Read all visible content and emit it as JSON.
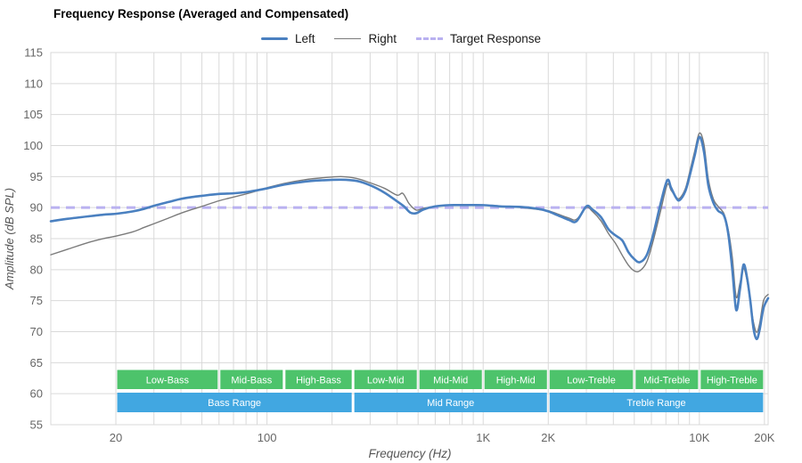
{
  "title": "Frequency Response (Averaged and Compensated)",
  "legend": [
    {
      "label": "Left",
      "style": "thick",
      "color": "#4a80c0"
    },
    {
      "label": "Right",
      "style": "thin",
      "color": "#7b7b7b"
    },
    {
      "label": "Target Response",
      "style": "dashed",
      "color": "#b9b1f0"
    }
  ],
  "colors": {
    "grid": "#d9d9d9",
    "tick_text": "#666666",
    "axis_label_text": "#555555",
    "band_green": "#4dc36b",
    "band_blue": "#41a7e1",
    "band_text": "#ffffff",
    "left_line": "#4a80c0",
    "right_line": "#7b7b7b",
    "target_line": "#b9b1f0"
  },
  "chart_data": {
    "type": "line",
    "title": "Frequency Response (Averaged and Compensated)",
    "xlabel": "Frequency (Hz)",
    "ylabel": "Amplitude (dB SPL)",
    "x_scale": "log",
    "xlim": [
      10,
      20800
    ],
    "ylim": [
      55,
      115
    ],
    "grid": true,
    "legend_position": "top-center",
    "y_ticks": [
      55,
      60,
      65,
      70,
      75,
      80,
      85,
      90,
      95,
      100,
      105,
      110,
      115
    ],
    "x_ticks": [
      {
        "f": 20,
        "label": "20"
      },
      {
        "f": 100,
        "label": "100"
      },
      {
        "f": 1000,
        "label": "1K"
      },
      {
        "f": 2000,
        "label": "2K"
      },
      {
        "f": 10000,
        "label": "10K"
      },
      {
        "f": 20000,
        "label": "20K"
      }
    ],
    "x_gridlines": [
      20,
      30,
      40,
      50,
      60,
      70,
      80,
      90,
      100,
      200,
      300,
      400,
      500,
      600,
      700,
      800,
      900,
      1000,
      2000,
      3000,
      4000,
      5000,
      6000,
      7000,
      8000,
      9000,
      10000,
      20000
    ],
    "target_db": 90,
    "series": [
      {
        "name": "Left",
        "points": [
          [
            10,
            87.8
          ],
          [
            12,
            88.2
          ],
          [
            15,
            88.6
          ],
          [
            18,
            88.9
          ],
          [
            20,
            89.0
          ],
          [
            24,
            89.4
          ],
          [
            27,
            89.8
          ],
          [
            30,
            90.3
          ],
          [
            35,
            90.9
          ],
          [
            40,
            91.4
          ],
          [
            45,
            91.7
          ],
          [
            50,
            91.9
          ],
          [
            60,
            92.2
          ],
          [
            70,
            92.3
          ],
          [
            80,
            92.5
          ],
          [
            90,
            92.8
          ],
          [
            100,
            93.1
          ],
          [
            120,
            93.7
          ],
          [
            150,
            94.2
          ],
          [
            180,
            94.4
          ],
          [
            220,
            94.5
          ],
          [
            260,
            94.3
          ],
          [
            300,
            93.6
          ],
          [
            350,
            92.4
          ],
          [
            400,
            91.0
          ],
          [
            430,
            90.2
          ],
          [
            460,
            89.2
          ],
          [
            490,
            89.1
          ],
          [
            530,
            89.7
          ],
          [
            600,
            90.2
          ],
          [
            700,
            90.4
          ],
          [
            800,
            90.4
          ],
          [
            1000,
            90.4
          ],
          [
            1200,
            90.2
          ],
          [
            1500,
            90.1
          ],
          [
            1800,
            89.8
          ],
          [
            2000,
            89.4
          ],
          [
            2200,
            88.8
          ],
          [
            2500,
            88.0
          ],
          [
            2700,
            87.8
          ],
          [
            3000,
            90.2
          ],
          [
            3200,
            89.7
          ],
          [
            3500,
            88.5
          ],
          [
            3800,
            86.5
          ],
          [
            4100,
            85.5
          ],
          [
            4400,
            84.7
          ],
          [
            4700,
            82.8
          ],
          [
            5000,
            81.7
          ],
          [
            5300,
            81.2
          ],
          [
            5700,
            82.3
          ],
          [
            6100,
            85.5
          ],
          [
            6600,
            90.5
          ],
          [
            7100,
            94.4
          ],
          [
            7400,
            93.2
          ],
          [
            7800,
            91.6
          ],
          [
            8100,
            91.2
          ],
          [
            8600,
            92.6
          ],
          [
            9000,
            95.0
          ],
          [
            9500,
            98.3
          ],
          [
            10000,
            101.4
          ],
          [
            10500,
            99.0
          ],
          [
            11000,
            93.6
          ],
          [
            11600,
            90.8
          ],
          [
            12200,
            89.5
          ],
          [
            13000,
            88.7
          ],
          [
            13600,
            85.8
          ],
          [
            14200,
            80.0
          ],
          [
            14800,
            73.5
          ],
          [
            15400,
            76.8
          ],
          [
            16000,
            80.8
          ],
          [
            16600,
            78.8
          ],
          [
            17200,
            75.0
          ],
          [
            17800,
            70.5
          ],
          [
            18400,
            68.8
          ],
          [
            19000,
            70.3
          ],
          [
            19800,
            73.8
          ],
          [
            20800,
            75.4
          ]
        ]
      },
      {
        "name": "Right",
        "points": [
          [
            10,
            82.4
          ],
          [
            12,
            83.3
          ],
          [
            15,
            84.4
          ],
          [
            18,
            85.1
          ],
          [
            20,
            85.4
          ],
          [
            24,
            86.1
          ],
          [
            27,
            86.8
          ],
          [
            30,
            87.4
          ],
          [
            35,
            88.3
          ],
          [
            40,
            89.1
          ],
          [
            45,
            89.7
          ],
          [
            50,
            90.2
          ],
          [
            60,
            91.1
          ],
          [
            70,
            91.7
          ],
          [
            80,
            92.2
          ],
          [
            90,
            92.7
          ],
          [
            100,
            93.2
          ],
          [
            120,
            93.9
          ],
          [
            150,
            94.5
          ],
          [
            180,
            94.8
          ],
          [
            220,
            95.0
          ],
          [
            260,
            94.7
          ],
          [
            300,
            94.0
          ],
          [
            350,
            93.1
          ],
          [
            400,
            92.0
          ],
          [
            425,
            92.3
          ],
          [
            455,
            90.6
          ],
          [
            490,
            89.6
          ],
          [
            530,
            89.9
          ],
          [
            600,
            90.2
          ],
          [
            700,
            90.4
          ],
          [
            800,
            90.5
          ],
          [
            1000,
            90.4
          ],
          [
            1200,
            90.2
          ],
          [
            1500,
            90.0
          ],
          [
            1800,
            89.7
          ],
          [
            2000,
            89.5
          ],
          [
            2200,
            89.0
          ],
          [
            2500,
            88.3
          ],
          [
            2700,
            88.1
          ],
          [
            3000,
            90.0
          ],
          [
            3200,
            89.4
          ],
          [
            3500,
            87.9
          ],
          [
            3800,
            85.8
          ],
          [
            4100,
            84.2
          ],
          [
            4400,
            82.3
          ],
          [
            4700,
            80.7
          ],
          [
            5000,
            79.8
          ],
          [
            5300,
            79.8
          ],
          [
            5700,
            81.2
          ],
          [
            6100,
            84.5
          ],
          [
            6600,
            89.3
          ],
          [
            7100,
            93.7
          ],
          [
            7400,
            92.8
          ],
          [
            7800,
            91.7
          ],
          [
            8100,
            91.5
          ],
          [
            8600,
            93.0
          ],
          [
            9000,
            95.6
          ],
          [
            9500,
            99.0
          ],
          [
            10000,
            102.0
          ],
          [
            10500,
            100.2
          ],
          [
            11000,
            94.6
          ],
          [
            11600,
            91.4
          ],
          [
            12200,
            90.2
          ],
          [
            13000,
            89.0
          ],
          [
            13600,
            86.4
          ],
          [
            14200,
            82.0
          ],
          [
            14800,
            75.6
          ],
          [
            15400,
            77.8
          ],
          [
            16000,
            80.2
          ],
          [
            16600,
            78.3
          ],
          [
            17200,
            74.8
          ],
          [
            17800,
            71.5
          ],
          [
            18400,
            69.9
          ],
          [
            19000,
            71.3
          ],
          [
            19800,
            75.0
          ],
          [
            20800,
            76.0
          ]
        ]
      }
    ],
    "bands": {
      "sub": [
        {
          "label": "Low-Bass",
          "from": 20,
          "to": 60
        },
        {
          "label": "Mid-Bass",
          "from": 60,
          "to": 120
        },
        {
          "label": "High-Bass",
          "from": 120,
          "to": 250
        },
        {
          "label": "Low-Mid",
          "from": 250,
          "to": 500
        },
        {
          "label": "Mid-Mid",
          "from": 500,
          "to": 1000
        },
        {
          "label": "High-Mid",
          "from": 1000,
          "to": 2000
        },
        {
          "label": "Low-Treble",
          "from": 2000,
          "to": 5000
        },
        {
          "label": "Mid-Treble",
          "from": 5000,
          "to": 10000
        },
        {
          "label": "High-Treble",
          "from": 10000,
          "to": 20000
        }
      ],
      "main": [
        {
          "label": "Bass Range",
          "from": 20,
          "to": 250
        },
        {
          "label": "Mid Range",
          "from": 250,
          "to": 2000
        },
        {
          "label": "Treble Range",
          "from": 2000,
          "to": 20000
        }
      ]
    }
  }
}
